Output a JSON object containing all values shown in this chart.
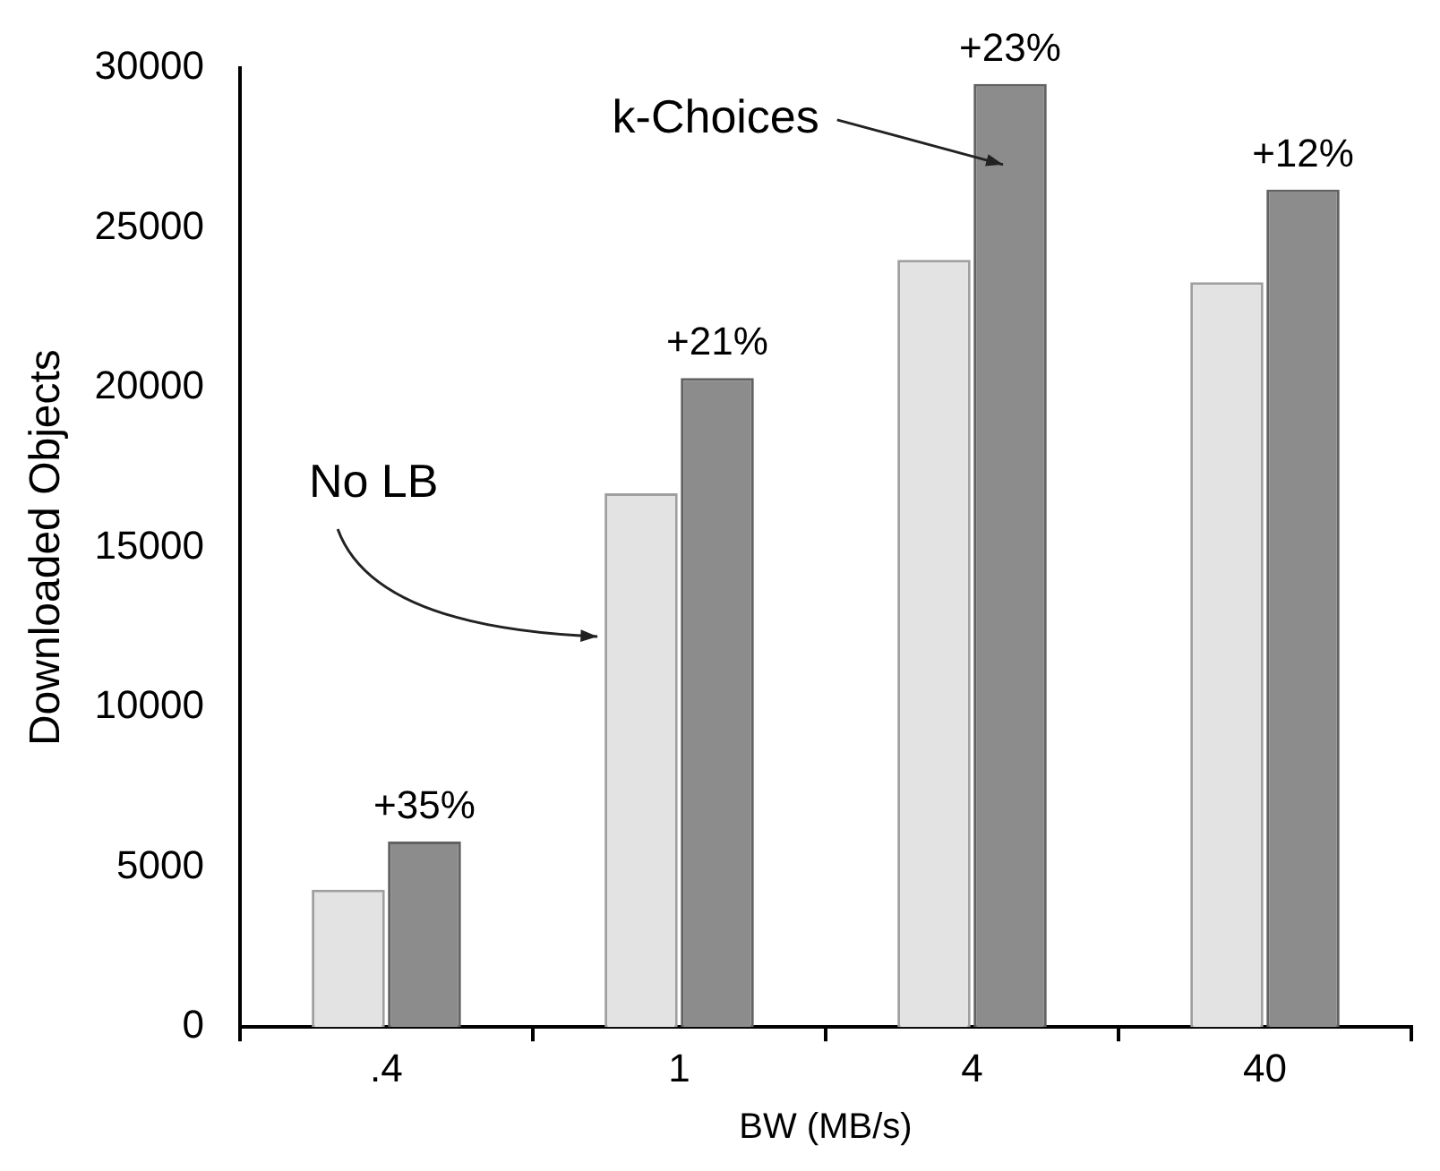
{
  "chart_data": {
    "type": "bar",
    "xlabel": "BW (MB/s)",
    "ylabel": "Downloaded Objects",
    "categories": [
      ".4",
      "1",
      "4",
      "40"
    ],
    "series": [
      {
        "name": "No LB",
        "color": "#e3e3e3",
        "values": [
          4300,
          16700,
          24000,
          23300
        ]
      },
      {
        "name": "k-Choices",
        "color": "#8c8c8c",
        "values": [
          5800,
          20300,
          29500,
          26200
        ]
      }
    ],
    "annotations": [
      {
        "text": "+35%",
        "x": ".4",
        "y": 5800
      },
      {
        "text": "+21%",
        "x": "1",
        "y": 20300
      },
      {
        "text": "+23%",
        "x": "4",
        "y": 29500
      },
      {
        "text": "+12%",
        "x": "40",
        "y": 26200
      }
    ],
    "ylim": [
      0,
      30000
    ],
    "yticks": [
      0,
      5000,
      10000,
      15000,
      20000,
      25000,
      30000
    ],
    "legend": false
  }
}
